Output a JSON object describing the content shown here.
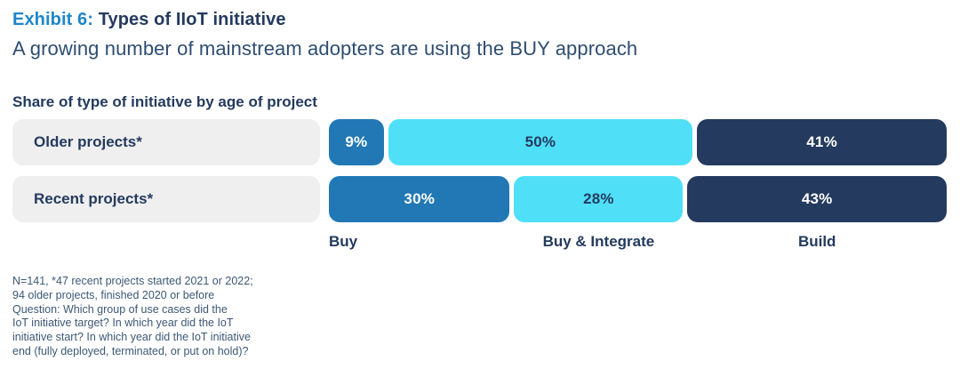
{
  "header": {
    "exhibit_label": "Exhibit 6:",
    "title": "Types of IIoT initiative",
    "subtitle": "A growing number of mainstream adopters are using the BUY approach"
  },
  "colors": {
    "accent_blue": "#1E87C8",
    "navy": "#243A5E",
    "buy_blue": "#2178B5",
    "integrate_cyan": "#4FE0F8",
    "label_pill_grey": "#EFEFEF",
    "footnote_text": "#3D5875"
  },
  "chart_data": {
    "type": "bar",
    "orientation": "horizontal-stacked",
    "title": "Share of type of initiative by age of project",
    "categories": [
      "Older projects*",
      "Recent projects*"
    ],
    "value_format": "percent",
    "series": [
      {
        "name": "Buy",
        "values": [
          9,
          30
        ],
        "color": "#2178B5",
        "text_color": "#FFFFFF"
      },
      {
        "name": "Buy & Integrate",
        "values": [
          50,
          28
        ],
        "color": "#4FE0F8",
        "text_color": "#243A5E"
      },
      {
        "name": "Build",
        "values": [
          41,
          43
        ],
        "color": "#243A5E",
        "text_color": "#FFFFFF"
      }
    ],
    "legend_position": "bottom",
    "grid": false,
    "xlim": [
      0,
      100
    ]
  },
  "footnote": "N=141, *47 recent projects started 2021 or 2022;\n94 older projects, finished 2020 or before\nQuestion: Which group of use cases did the\nIoT initiative target? In which year did the IoT\ninitiative start? In which year did the IoT initiative\nend (fully deployed, terminated, or put on hold)?"
}
